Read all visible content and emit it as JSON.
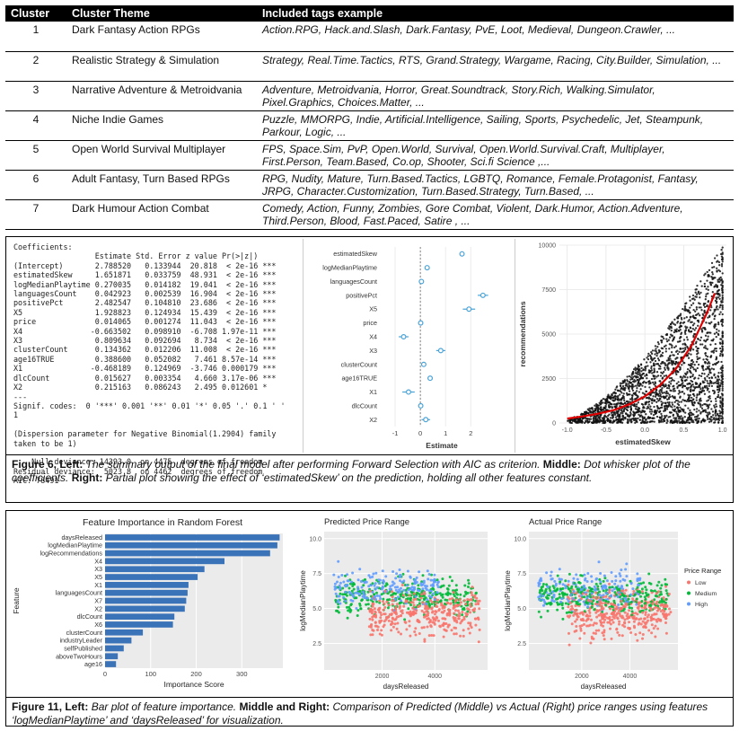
{
  "cluster_table": {
    "headers": [
      "Cluster",
      "Cluster Theme",
      "Included tags example"
    ],
    "rows": [
      {
        "cluster": "1",
        "theme": "Dark Fantasy Action RPGs",
        "tags": "Action.RPG, Hack.and.Slash, Dark.Fantasy, PvE, Loot, Medieval, Dungeon.Crawler, ..."
      },
      {
        "cluster": "2",
        "theme": "Realistic Strategy & Simulation",
        "tags": "Strategy, Real.Time.Tactics, RTS, Grand.Strategy, Wargame, Racing, City.Builder, Simulation, ..."
      },
      {
        "cluster": "3",
        "theme": "Narrative Adventure & Metroidvania",
        "tags": "Adventure, Metroidvania, Horror, Great.Soundtrack, Story.Rich, Walking.Simulator, Pixel.Graphics, Choices.Matter, ..."
      },
      {
        "cluster": "4",
        "theme": "Niche Indie Games",
        "tags": "Puzzle, MMORPG, Indie, Artificial.Intelligence, Sailing, Sports, Psychedelic, Jet, Steampunk, Parkour, Logic, ..."
      },
      {
        "cluster": "5",
        "theme": "Open World Survival Multiplayer",
        "tags": "FPS, Space.Sim, PvP, Open.World, Survival, Open.World.Survival.Craft, Multiplayer, First.Person, Team.Based, Co.op, Shooter, Sci.fi Science ,..."
      },
      {
        "cluster": "6",
        "theme": "Adult Fantasy, Turn Based RPGs",
        "tags": "RPG, Nudity, Mature, Turn.Based.Tactics, LGBTQ, Romance, Female.Protagonist, Fantasy, JRPG, Character.Customization, Turn.Based.Strategy, Turn.Based, ..."
      },
      {
        "cluster": "7",
        "theme": "Dark Humour Action Combat",
        "tags": "Comedy, Action, Funny, Zombies, Gore Combat, Violent, Dark.Humor, Action.Adventure, Third.Person, Blood, Fast.Paced, Satire , ..."
      }
    ]
  },
  "figure6": {
    "summary_lines": [
      "Coefficients:",
      "                  Estimate Std. Error z value Pr(>|z|)",
      "(Intercept)       2.788520   0.133944  20.818  < 2e-16 ***",
      "estimatedSkew     1.651871   0.033759  48.931  < 2e-16 ***",
      "logMedianPlaytime 0.270035   0.014182  19.041  < 2e-16 ***",
      "languagesCount    0.042923   0.002539  16.904  < 2e-16 ***",
      "positivePct       2.482547   0.104810  23.686  < 2e-16 ***",
      "X5                1.928823   0.124934  15.439  < 2e-16 ***",
      "price             0.014065   0.001274  11.043  < 2e-16 ***",
      "X4               -0.663502   0.098910  -6.708 1.97e-11 ***",
      "X3                0.809634   0.092694   8.734  < 2e-16 ***",
      "clusterCount      0.134362   0.012206  11.008  < 2e-16 ***",
      "age16TRUE         0.388600   0.052082   7.461 8.57e-14 ***",
      "X1               -0.468189   0.124969  -3.746 0.000179 ***",
      "dlcCount          0.015627   0.003354   4.660 3.17e-06 ***",
      "X2                0.215163   0.086243   2.495 0.012601 *",
      "---",
      "Signif. codes:  0 '***' 0.001 '**' 0.01 '*' 0.05 '.' 0.1 ' '",
      "1",
      "",
      "(Dispersion parameter for Negative Binomial(1.2904) family",
      "taken to be 1)",
      "",
      "    Null deviance: 14393.0  on 4475  degrees of freedom",
      "Residual deviance:  5023.8  on 4462  degrees of freedom",
      "AIC: 78491"
    ],
    "caption": {
      "label": "Figure 6, Left:",
      "text1": " The summary output of the final model after performing Forward Selection with AIC as criterion. ",
      "middle_label": "Middle:",
      "text2": " Dot whisker plot of the coefficients. ",
      "right_label": "Right:",
      "text3": " Partial plot showing the effect of ‘estimatedSkew’  on the prediction, holding all other features constant."
    }
  },
  "figure11": {
    "caption": {
      "label": "Figure 11, Left:",
      "text1": " Bar plot of feature importance. ",
      "right_label": "Middle and Right:",
      "text2": " Comparison of Predicted (Middle) vs Actual (Right) price ranges using features ‘logMedianPlaytime’ and ‘daysReleased’ for visualization."
    }
  },
  "colors": {
    "dot_whisker": "#4aa3d8",
    "curve": "#e00000",
    "bar": "#3b73b9",
    "low": "#f8766d",
    "medium": "#00ba38",
    "high": "#619cff",
    "panel_bg": "#ebebeb"
  },
  "chart_data": [
    {
      "type": "scatter",
      "subtype": "dot-whisker",
      "title": "",
      "xlabel": "Estimate",
      "ylabel": "",
      "xlim": [
        -1.5,
        3.2
      ],
      "xticks": [
        -1,
        0,
        1,
        2
      ],
      "reference_line": 0,
      "terms": [
        "estimatedSkew",
        "logMedianPlaytime",
        "languagesCount",
        "positivePct",
        "X5",
        "price",
        "X4",
        "X3",
        "clusterCount",
        "age16TRUE",
        "X1",
        "dlcCount",
        "X2"
      ],
      "estimates": [
        1.651871,
        0.270035,
        0.042923,
        2.482547,
        1.928823,
        0.014065,
        -0.663502,
        0.809634,
        0.134362,
        0.3886,
        -0.468189,
        0.015627,
        0.215163
      ],
      "std_errors": [
        0.033759,
        0.014182,
        0.002539,
        0.10481,
        0.124934,
        0.001274,
        0.09891,
        0.092694,
        0.012206,
        0.052082,
        0.124969,
        0.003354,
        0.086243
      ]
    },
    {
      "type": "scatter",
      "title": "",
      "xlabel": "estimatedSkew",
      "ylabel": "recommendations",
      "xlim": [
        -1.1,
        1.05
      ],
      "ylim": [
        0,
        10000
      ],
      "xticks": [
        -1.0,
        -0.5,
        0.0,
        0.5,
        1.0
      ],
      "yticks": [
        0,
        2500,
        5000,
        7500,
        10000
      ],
      "fit_curve": {
        "x": [
          -1.0,
          -0.8,
          -0.6,
          -0.4,
          -0.2,
          0.0,
          0.2,
          0.4,
          0.6,
          0.8,
          0.9
        ],
        "y": [
          250,
          370,
          520,
          720,
          1050,
          1500,
          2150,
          3050,
          4350,
          6200,
          7300
        ]
      },
      "note": "approx. 4000 jittered points, density increasing with estimatedSkew"
    },
    {
      "type": "bar",
      "orientation": "horizontal",
      "title": "Feature Importance in Random Forest",
      "xlabel": "Importance Score",
      "ylabel": "Feature",
      "xlim": [
        0,
        390
      ],
      "xticks": [
        0,
        100,
        200,
        300
      ],
      "categories": [
        "daysReleased",
        "logMedianPlaytime",
        "logRecommendations",
        "X4",
        "X3",
        "X5",
        "X1",
        "languagesCount",
        "X7",
        "X2",
        "dlcCount",
        "X6",
        "clusterCount",
        "industryLeader",
        "selfPublished",
        "aboveTwoHours",
        "age16"
      ],
      "values": [
        383,
        378,
        362,
        262,
        218,
        203,
        183,
        181,
        178,
        175,
        152,
        149,
        83,
        58,
        41,
        28,
        24
      ]
    },
    {
      "type": "scatter",
      "title": "Predicted Price Range",
      "xlabel": "daysReleased",
      "ylabel": "logMedianPlaytime",
      "xlim": [
        -200,
        6000
      ],
      "ylim": [
        0.6,
        10.5
      ],
      "xticks": [
        2000,
        4000
      ],
      "yticks": [
        2.5,
        5.0,
        7.5,
        10.0
      ],
      "series": [
        {
          "name": "Low",
          "color": "#f8766d"
        },
        {
          "name": "Medium",
          "color": "#00ba38"
        },
        {
          "name": "High",
          "color": "#619cff"
        }
      ]
    },
    {
      "type": "scatter",
      "title": "Actual Price Range",
      "xlabel": "daysReleased",
      "ylabel": "logMedianPlaytime",
      "xlim": [
        -200,
        6000
      ],
      "ylim": [
        0.6,
        10.5
      ],
      "xticks": [
        2000,
        4000
      ],
      "yticks": [
        2.5,
        5.0,
        7.5,
        10.0
      ],
      "legend_title": "Price Range",
      "legend_position": "right",
      "series": [
        {
          "name": "Low",
          "color": "#f8766d"
        },
        {
          "name": "Medium",
          "color": "#00ba38"
        },
        {
          "name": "High",
          "color": "#619cff"
        }
      ]
    }
  ]
}
